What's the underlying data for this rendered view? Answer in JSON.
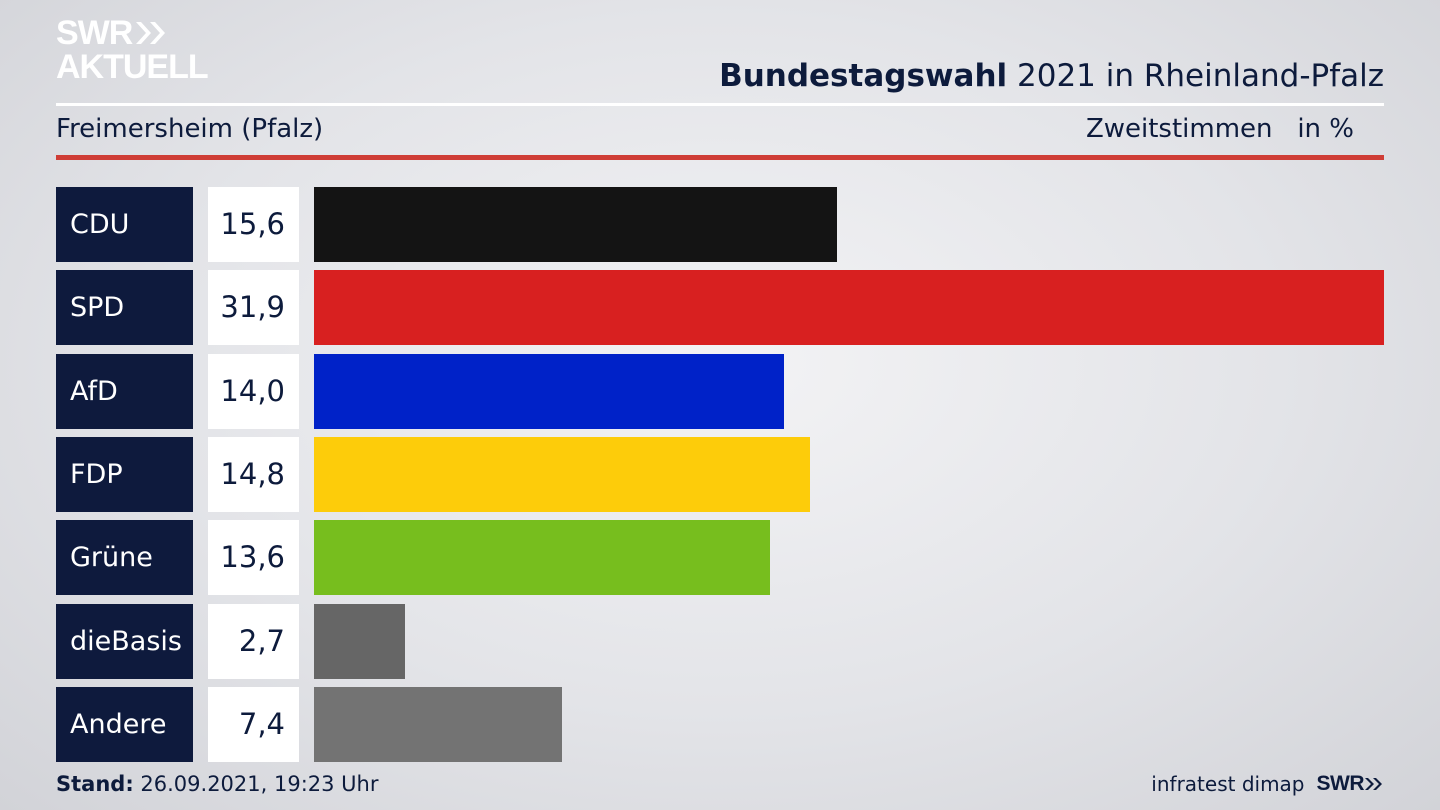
{
  "logo": {
    "line1": "SWR",
    "line2": "AKTUELL"
  },
  "header": {
    "title_bold": "Bundestagswahl",
    "title_rest": " 2021 in Rheinland-Pfalz"
  },
  "subheader": {
    "location": "Freimersheim (Pfalz)",
    "unit": "Zweitstimmen   in %"
  },
  "chart_data": {
    "type": "bar",
    "orientation": "horizontal",
    "title": "Bundestagswahl 2021 in Rheinland-Pfalz",
    "categories": [
      "CDU",
      "SPD",
      "AfD",
      "FDP",
      "Grüne",
      "dieBasis",
      "Andere"
    ],
    "values": [
      15.6,
      31.9,
      14.0,
      14.8,
      13.6,
      2.7,
      7.4
    ],
    "labels": [
      "15,6",
      "31,9",
      "14,0",
      "14,8",
      "13,6",
      "2,7",
      "7,4"
    ],
    "colors": [
      "#141414",
      "#d82020",
      "#0022c8",
      "#fdcc0a",
      "#77be1e",
      "#666666",
      "#737373"
    ],
    "xlim": [
      0,
      31.9
    ],
    "grid": false
  },
  "footer": {
    "stand_label": "Stand:",
    "stand_value": " 26.09.2021, 19:23 Uhr",
    "source": "infratest dimap",
    "brand": "SWR"
  }
}
